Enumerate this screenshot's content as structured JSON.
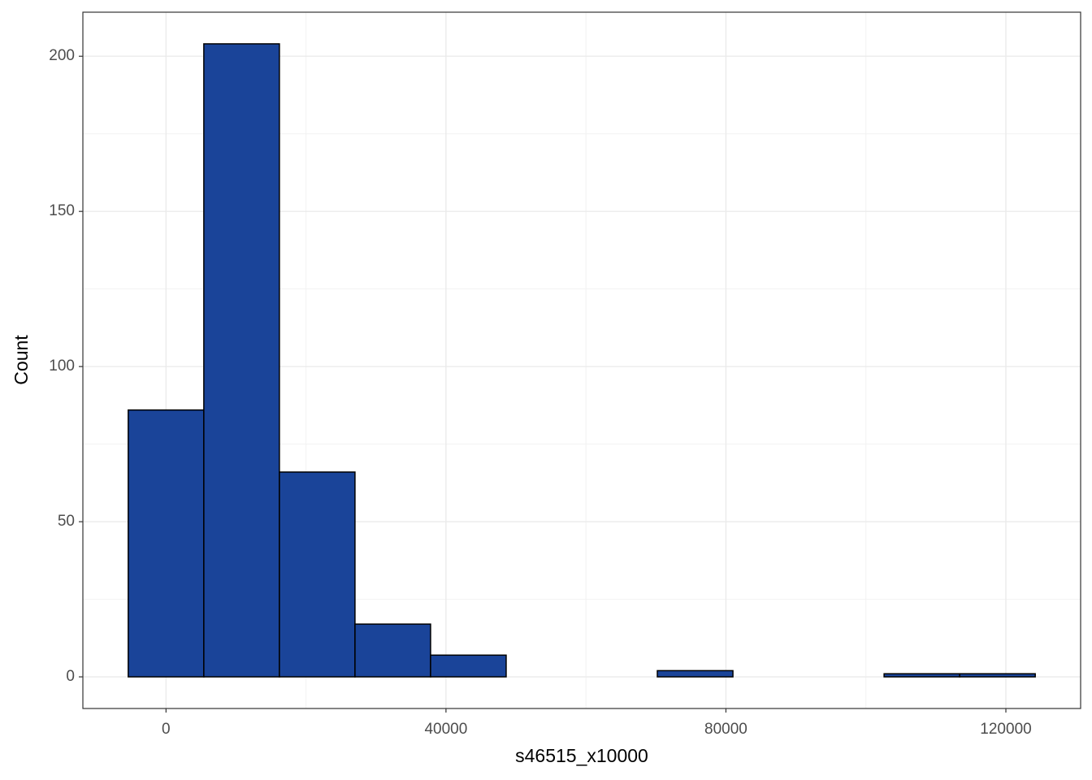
{
  "chart_data": {
    "type": "histogram",
    "x_label": "s46515_x10000",
    "y_label": "Count",
    "bins": [
      -5400,
      5400,
      16200,
      27000,
      37800,
      48600,
      59400,
      70200,
      81000,
      91800,
      102600,
      113400,
      124200
    ],
    "values": [
      86,
      204,
      66,
      17,
      7,
      0,
      0,
      2,
      0,
      0,
      1,
      1
    ],
    "color": "#1a4499",
    "edge_color": "#000000",
    "xlim": [
      -11880,
      130680
    ],
    "xticks": [
      0,
      40000,
      80000,
      120000
    ],
    "ylim": [
      -10.2,
      214.2
    ],
    "yticks": [
      0,
      50,
      100,
      150,
      200
    ],
    "grid": true,
    "minor_grid": true
  }
}
